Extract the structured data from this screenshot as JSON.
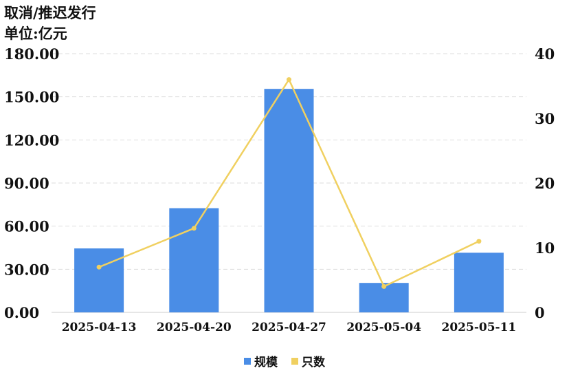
{
  "header": {
    "title": "取消/推迟发行",
    "unit": "单位:亿元"
  },
  "chart_data": {
    "type": "bar",
    "categories": [
      "2025-04-13",
      "2025-04-20",
      "2025-04-27",
      "2025-05-04",
      "2025-05-11"
    ],
    "series": [
      {
        "name": "规模",
        "type": "bar",
        "axis": "left",
        "color": "#4a8de6",
        "values": [
          44.5,
          72.5,
          155.5,
          20.5,
          41.5
        ]
      },
      {
        "name": "只数",
        "type": "line",
        "axis": "right",
        "color": "#f0d060",
        "values": [
          7,
          13,
          36,
          4,
          11
        ]
      }
    ],
    "left_axis": {
      "ylim": [
        0,
        180
      ],
      "ticks": [
        "0.00",
        "30.00",
        "60.00",
        "90.00",
        "120.00",
        "150.00",
        "180.00"
      ]
    },
    "right_axis": {
      "ylim": [
        0,
        40
      ],
      "ticks": [
        "0",
        "10",
        "20",
        "30",
        "40"
      ]
    },
    "grid": true,
    "legend_position": "bottom-center"
  }
}
